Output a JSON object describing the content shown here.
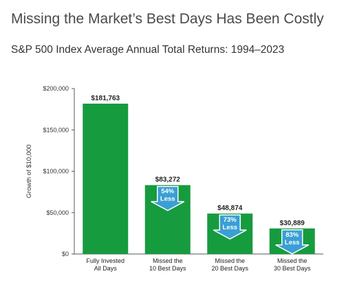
{
  "page": {
    "title": "Missing the Market’s Best Days Has Been Costly",
    "subtitle": "S&P 500 Index Average Annual Total Returns: 1994–2023"
  },
  "colors": {
    "bar": "#169b3f",
    "arrow": "#3a9fd4",
    "arrow_stroke": "#ffffff",
    "axis": "#555555",
    "grid": "#cccccc"
  },
  "chart_data": {
    "type": "bar",
    "title": "Missing the Market’s Best Days Has Been Costly",
    "subtitle": "S&P 500 Index Average Annual Total Returns: 1994–2023",
    "ylabel": "Growth of $10,000",
    "xlabel": "",
    "ylim": [
      0,
      200000
    ],
    "yticks": [
      0,
      50000,
      100000,
      150000,
      200000
    ],
    "ytick_labels": [
      "$0",
      "$50,000",
      "$100,000",
      "$150,000",
      "$200,000"
    ],
    "grid": false,
    "categories": [
      [
        "Fully Invested",
        "All Days"
      ],
      [
        "Missed the",
        "10 Best Days"
      ],
      [
        "Missed the",
        "20 Best Days"
      ],
      [
        "Missed the",
        "30 Best Days"
      ]
    ],
    "values": [
      181763,
      83272,
      48874,
      30889
    ],
    "value_labels": [
      "$181,763",
      "$83,272",
      "$48,874",
      "$30,889"
    ],
    "annotations": [
      null,
      [
        "54%",
        "Less"
      ],
      [
        "73%",
        "Less"
      ],
      [
        "83%",
        "Less"
      ]
    ]
  }
}
